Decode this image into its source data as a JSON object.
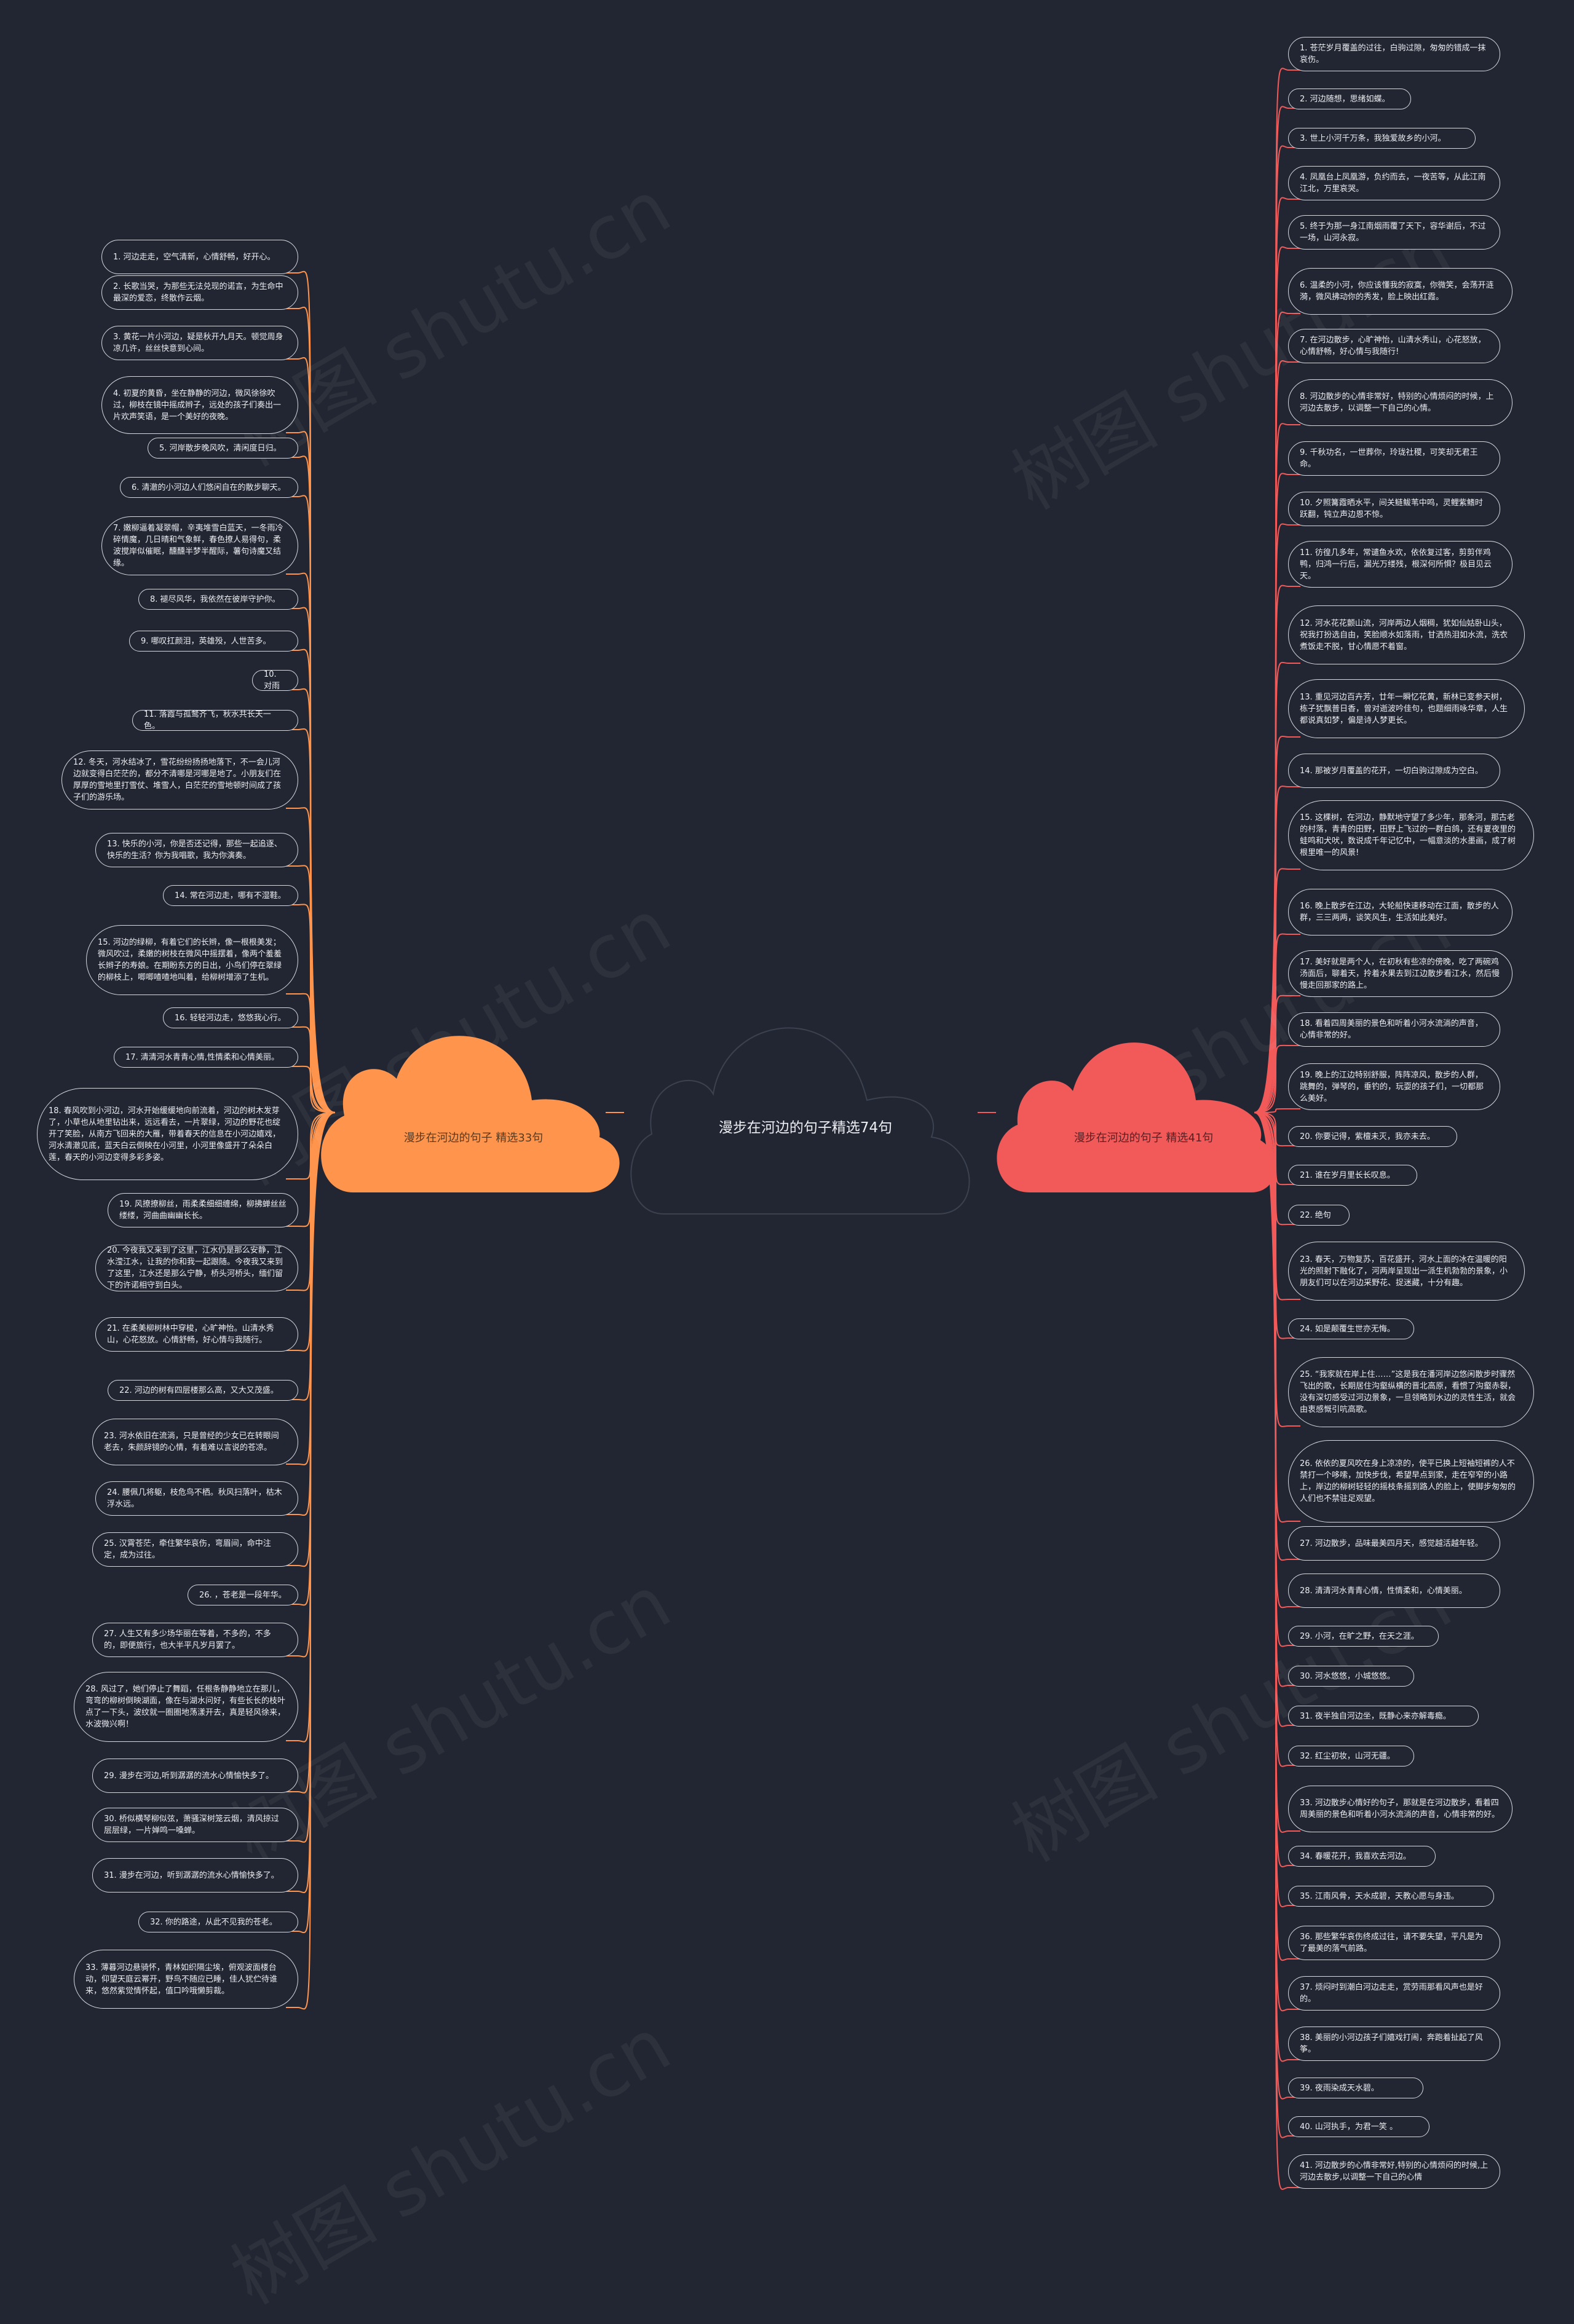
{
  "root": {
    "title": "漫步在河边的句子精选74句"
  },
  "colors": {
    "background": "#222632",
    "left_branch": "#ff944d",
    "right_branch": "#f25a5a",
    "line_left": "#ff944d",
    "line_right": "#f25a5a",
    "node_border": "#d6d8de"
  },
  "left": {
    "title": "漫步在河边的句子 精选33句",
    "items": [
      "1. 河边走走，空气清新，心情舒畅，好开心。",
      "2. 长歌当哭，为那些无法兑现的诺言，为生命中最深的爱恋，终散作云烟。",
      "3. 黄花一片小河边，疑是秋开九月天。顿觉周身凉几许，丝丝快意到心间。",
      "4. 初夏的黄昏，坐在静静的河边，微风徐徐吹过，柳枝在镜中摇成辫子，远处的孩子们奏出一片欢声笑语，是一个美好的夜晚。",
      "5. 河岸散步晚风吹，清闲度日归。",
      "6. 清澈的小河边人们悠闲自在的散步聊天。",
      "7. 嫩柳逼着凝翠帽，辛夷堆雪白蓝天，一冬雨冷碎情魔，几日晴和气象鲜，春色撩人易得句，柔波搅岸似催眠，醺醺半梦半醒际，薯句诗魔又结缘。",
      "8. 褪尽风华，我依然在彼岸守护你。",
      "9. 哪叹扛颜泪，英雄殁，人世苦多。",
      "10. 对雨",
      "11. 落霞与孤鹜齐飞，秋水共长天一色。",
      "12. 冬天，河水结冰了，雪花纷纷扬扬地落下，不一会儿河边就变得白茫茫的，都分不清哪是河哪是地了。小朋友们在厚厚的雪地里打雪仗、堆雪人，白茫茫的雪地顿时间成了孩子们的游乐场。",
      "13. 快乐的小河，你是否还记得，那些一起追逐、快乐的生活？你为我唱歌，我为你演奏。",
      "14. 常在河边走，哪有不湿鞋。",
      "15. 河边的绿柳，有着它们的长辫，像一根根美发；微风吹过，柔嫩的树枝在微风中摇摆着，像两个羞羞长辫子的寿娘。在期盼东方的日出，小鸟们停在翠绿的柳枝上，唧唧喳喳地叫着，给柳树增添了生机。",
      "16. 轻轻河边走，悠悠我心行。",
      "17. 清清河水青青心情,性情柔和心情美丽。",
      "18. 春风吹到小河边，河水开始缓缓地向前流着，河边的树木发芽了，小草也从地里钻出来，远远看去，一片翠绿，河边的野花也绽开了笑脸，从南方飞回来的大雁，带着春天的信息在小河边嬉戏，河水清澈见底，蓝天白云倒映在小河里，小河里像盛开了朵朵白莲，春天的小河边变得多彩多姿。",
      "19. 风撩撩柳丝，雨柔柔细细缠绵，柳拂蝉丝丝缕缕，河曲曲幽幽长长。",
      "20. 今夜我又来到了这里，江水仍是那么安静，江水滢江水，让我的你和我一起跟随。今夜我又来到了这里，江水还是那么宁静，桥头河桥头，缅们留下的许诺相守到白头。",
      "21. 在柔美柳树林中穿梭，心旷神怡。山清水秀山，心花怒放。心情舒畅，好心情与我随行。",
      "22. 河边的树有四层楼那么高，又大又茂盛。",
      "23. 河水依旧在流淌，只是曾经的少女已在转眼间老去，朱颜辞镜的心情，有着难以言说的苍凉。",
      "24. 腰佩几将躯，枝危鸟不栖。秋风扫落叶，枯木浮水远。",
      "25. 汉霄苍茫，牵住繁华哀伤，弯眉间，命中注定，成为过往。",
      "26. ，苍老是一段年华。",
      "27. 人生又有多少场华丽在等着，不多的，不多的，即便旅行，也大半平凡岁月罢了。",
      "28. 风过了，她们停止了舞蹈，任根条静静地立在那儿，弯弯的柳树倒映湖面，像在与湖水问好，有些长长的枝叶点了一下头，波纹就一圈圈地荡漾开去，真是轻风徐来，水波微兴啊！",
      "29. 漫步在河边,听到潺潺的流水心情愉快多了。",
      "30. 桥似横琴柳似弦，萧骚深树笼云烟，清风掠过层层绿，一片婵鸣一嗓蝉。",
      "31. 漫步在河边，听到潺潺的流水心情愉快多了。",
      "32. 你的路途，从此不见我的苍老。",
      "33. 薄暮河边悬骑怀，青林如织隔尘埃，俯观波面楼台动，仰望天庭云幂开，野鸟不随应已睡，佳人犹伫待谁来，悠然紫觉情怀起，值口吟哦懒剪裁。"
    ]
  },
  "right": {
    "title": "漫步在河边的句子 精选41句",
    "items": [
      "1. 苍茫岁月覆盖的过往，白驹过隙，匆匆的错成一抹哀伤。",
      "2. 河边随想，思绪如蝶。",
      "3. 世上小河千万条，我独爱故乡的小河。",
      "4. 凤凰台上凤凰游，负约而去，一夜苦等，从此江南江北，万里哀哭。",
      "5. 终于为那一身江南烟雨覆了天下，容华谢后，不过一场，山河永寂。",
      "6. 温柔的小河，你应该懂我的寂寞，你微笑，会荡开涟漪，微风拂动你的秀发，脸上映出红霞。",
      "7. 在河边散步，心旷神怡，山清水秀山，心花怒放，心情舒畅，好心情与我随行!",
      "8. 河边散步的心情非常好，特别的心情烦闷的时候，上河边去散步，以调整一下自己的心情。",
      "9. 千秋功名，一世葬你，玲珑社稷，可笑却无君王命。",
      "10. 夕照篝霞晒水平，间关鲢鲅苇中鸣，灵鲤紫鳍时跃翻，钝立声边恩不惊。",
      "11. 彷徨几多年，常谴鱼水欢，依依复过客，剪剪伴鸡鸭，归鸿一行后，漏光万缕残，根深何所惧？极目见云天。",
      "12. 河水花花颤山流，河岸两边人烟稠，犹如仙姑卧山头，祝我打扮选自由，笑脸顺水如落雨，甘洒热泪如水流，洗衣煮饭走不脱，甘心情愿不着窗。",
      "13. 重见河边百卉芳，廿年一瞬忆花黄，新林已变参天树，栋子犹飘普日香，曾对逝波吟佳句，也题细雨咏华章，人生都说真如梦，偏是诗人梦更长。",
      "14. 那被岁月覆盖的花开，一切白驹过隙成为空白。",
      "15. 这棵树，在河边，静默地守望了多少年，那条河，那古老的村落，青青的田野，田野上飞过的一群白鸽，还有夏夜里的蛙鸣和犬吠，数说成千年记忆中，一幅意淡的水墨画，成了树根里唯一的风景!",
      "16. 晚上散步在江边，大轮船快速移动在江面，散步的人群，三三两两，谈笑风生，生活如此美好。",
      "17. 美好就是两个人，在初秋有些凉的傍晚，吃了两碗鸡汤面后，聊着天，拎着水果去到江边散步看江水，然后慢慢走回那家的路上。",
      "18. 看着四周美丽的景色和听着小河水流淌的声音，心情非常的好。",
      "19. 晚上的江边特别舒服，阵阵凉风，散步的人群，跳舞的，弹琴的，垂钓的，玩耍的孩子们，一切都那么美好。",
      "20. 你要记得，紫檀未灭，我亦未去。",
      "21. 谁在岁月里长长叹息。",
      "22. 绝句",
      "23. 春天，万物复苏，百花盛开，河水上面的冰在温暖的阳光的照射下融化了，河两岸呈现出一派生机勃勃的景象，小朋友们可以在河边采野花、捉迷藏，十分有趣。",
      "24. 如是颠覆生世亦无悔。",
      "25. “我家就在岸上住……”这是我在潘河岸边悠闲散步时骤然飞出的歌，长期居住沟壑纵横的晋北高原，看惯了沟壑赤裂，没有深切感受过河边景象，一旦领略到水边的灵性生活，就会由衷感慨引吭高歌。",
      "26. 依依的夏风吹在身上凉凉的，使平已换上短袖短裤的人不禁打一个哆嗦，加快步伐，希望早点到家，走在窄窄的小路上，岸边的柳树轻轻的摇枝条摇到路人的脸上，使脚步匆匆的人们也不禁驻足观望。",
      "27. 河边散步，品味最美四月天，感觉越活越年轻。",
      "28. 清清河水青青心情，性情柔和，心情美丽。",
      "29. 小河，在旷之野，在天之涯。",
      "30. 河水悠悠，小城悠悠。",
      "31. 夜半独自河边坐，既静心来亦解毒瘾。",
      "32. 红尘初妆，山河无疆。",
      "33. 河边散步心情好的句子，那就是在河边散步，看着四周美丽的景色和听着小河水流淌的声音，心情非常的好。",
      "34. 春暖花开，我喜欢去河边。",
      "35. 江南风骨，天水成碧，天教心愿与身违。",
      "36. 那些繁华哀伤终成过往，请不要失望，平凡是为了最美的落气前路。",
      "37. 烦闷时到潮白河边走走，赏劳雨那看风声也是好的。",
      "38. 美丽的小河边孩子们嬉戏打闹，奔跑着扯起了风筝。",
      "39. 夜雨染成天水碧。",
      "40. 山河执手，为君一笑 。",
      "41. 河边散步的心情非常好,特别的心情烦闷的时候,上河边去散步,以调整一下自己的心情"
    ]
  }
}
